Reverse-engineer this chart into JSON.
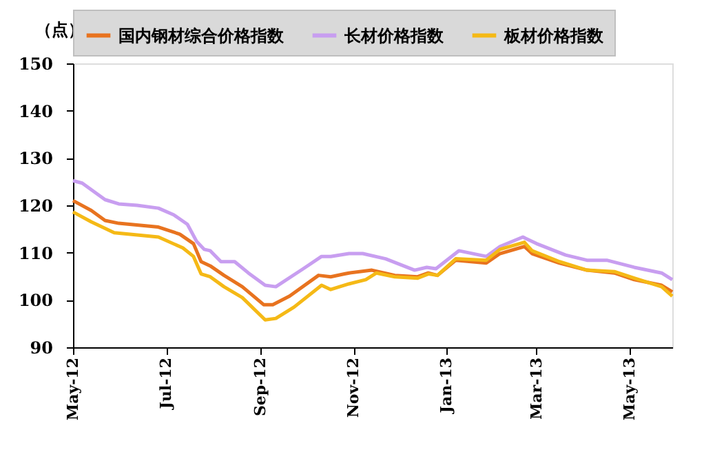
{
  "chart_data": {
    "type": "line",
    "ylabel": "（点）",
    "xlim": [
      "2012-05-01",
      "2013-05-29"
    ],
    "xticks": [
      {
        "value": "2012-05-01",
        "label": "May-12"
      },
      {
        "value": "2012-07-01",
        "label": "Jul-12"
      },
      {
        "value": "2012-09-01",
        "label": "Sep-12"
      },
      {
        "value": "2012-11-01",
        "label": "Nov-12"
      },
      {
        "value": "2013-01-01",
        "label": "Jan-13"
      },
      {
        "value": "2013-03-01",
        "label": "Mar-13"
      },
      {
        "value": "2013-05-01",
        "label": "May-13"
      }
    ],
    "ylim": [
      90,
      150
    ],
    "yticks": [
      90,
      100,
      110,
      120,
      130,
      140,
      150
    ],
    "grid": false,
    "legend": "top",
    "marker": "none",
    "line_style": "solid",
    "series": [
      {
        "name": "国内钢材综合价格指数",
        "color": "#e8731f",
        "x": [
          "2012-05-01",
          "2012-05-13",
          "2012-05-22",
          "2012-05-31",
          "2012-06-26",
          "2012-07-10",
          "2012-07-19",
          "2012-07-24",
          "2012-07-30",
          "2012-08-08",
          "2012-08-20",
          "2012-09-03",
          "2012-09-09",
          "2012-09-20",
          "2012-10-09",
          "2012-10-17",
          "2012-10-26",
          "2012-10-29",
          "2012-11-13",
          "2012-11-28",
          "2012-12-13",
          "2012-12-20",
          "2012-12-26",
          "2013-01-07",
          "2013-01-27",
          "2013-02-05",
          "2013-02-21",
          "2013-02-26",
          "2013-03-16",
          "2013-04-03",
          "2013-04-21",
          "2013-05-04",
          "2013-05-22",
          "2013-05-29"
        ],
        "values": [
          121.0,
          118.9,
          116.8,
          116.2,
          115.4,
          113.9,
          111.9,
          108.1,
          107.2,
          105.2,
          102.8,
          99.0,
          99.0,
          100.8,
          105.2,
          104.9,
          105.5,
          105.7,
          106.3,
          105.2,
          104.9,
          105.7,
          105.2,
          108.4,
          107.8,
          109.8,
          111.3,
          109.8,
          107.8,
          106.3,
          105.7,
          104.3,
          103.1,
          101.7
        ]
      },
      {
        "name": "长材价格指数",
        "color": "#c89ef0",
        "x": [
          "2012-05-01",
          "2012-05-07",
          "2012-05-22",
          "2012-05-31",
          "2012-06-12",
          "2012-06-26",
          "2012-07-06",
          "2012-07-15",
          "2012-07-21",
          "2012-07-26",
          "2012-07-30",
          "2012-08-06",
          "2012-08-15",
          "2012-08-24",
          "2012-09-04",
          "2012-09-11",
          "2012-09-29",
          "2012-10-11",
          "2012-10-17",
          "2012-10-29",
          "2012-11-07",
          "2012-11-22",
          "2012-12-11",
          "2012-12-19",
          "2012-12-25",
          "2013-01-09",
          "2013-01-27",
          "2013-02-05",
          "2013-02-20",
          "2013-03-01",
          "2013-03-20",
          "2013-04-03",
          "2013-04-16",
          "2013-05-04",
          "2013-05-22",
          "2013-05-29"
        ],
        "values": [
          125.2,
          124.7,
          121.2,
          120.3,
          120.0,
          119.4,
          118.0,
          116.0,
          112.4,
          110.7,
          110.4,
          108.1,
          108.1,
          105.7,
          103.1,
          102.8,
          106.6,
          109.2,
          109.2,
          109.8,
          109.8,
          108.7,
          106.3,
          106.9,
          106.6,
          110.4,
          109.2,
          111.3,
          113.3,
          111.9,
          109.5,
          108.4,
          108.4,
          106.9,
          105.7,
          104.3
        ]
      },
      {
        "name": "板材价格指数",
        "color": "#f5b916",
        "x": [
          "2012-05-01",
          "2012-05-13",
          "2012-05-28",
          "2012-06-26",
          "2012-07-12",
          "2012-07-19",
          "2012-07-24",
          "2012-07-30",
          "2012-08-08",
          "2012-08-20",
          "2012-09-04",
          "2012-09-11",
          "2012-09-23",
          "2012-10-11",
          "2012-10-17",
          "2012-10-29",
          "2012-11-09",
          "2012-11-16",
          "2012-11-28",
          "2012-12-13",
          "2012-12-20",
          "2012-12-26",
          "2013-01-07",
          "2013-01-27",
          "2013-02-05",
          "2013-02-21",
          "2013-02-26",
          "2013-03-16",
          "2013-04-03",
          "2013-04-21",
          "2013-05-04",
          "2013-05-22",
          "2013-05-29"
        ],
        "values": [
          118.6,
          116.5,
          114.2,
          113.3,
          111.0,
          109.2,
          105.5,
          104.9,
          102.8,
          100.5,
          95.8,
          96.1,
          98.5,
          103.1,
          102.2,
          103.4,
          104.3,
          105.7,
          104.9,
          104.6,
          105.5,
          105.2,
          108.7,
          108.4,
          110.7,
          112.2,
          110.4,
          108.1,
          106.3,
          106.0,
          104.6,
          102.8,
          100.8
        ]
      }
    ]
  }
}
